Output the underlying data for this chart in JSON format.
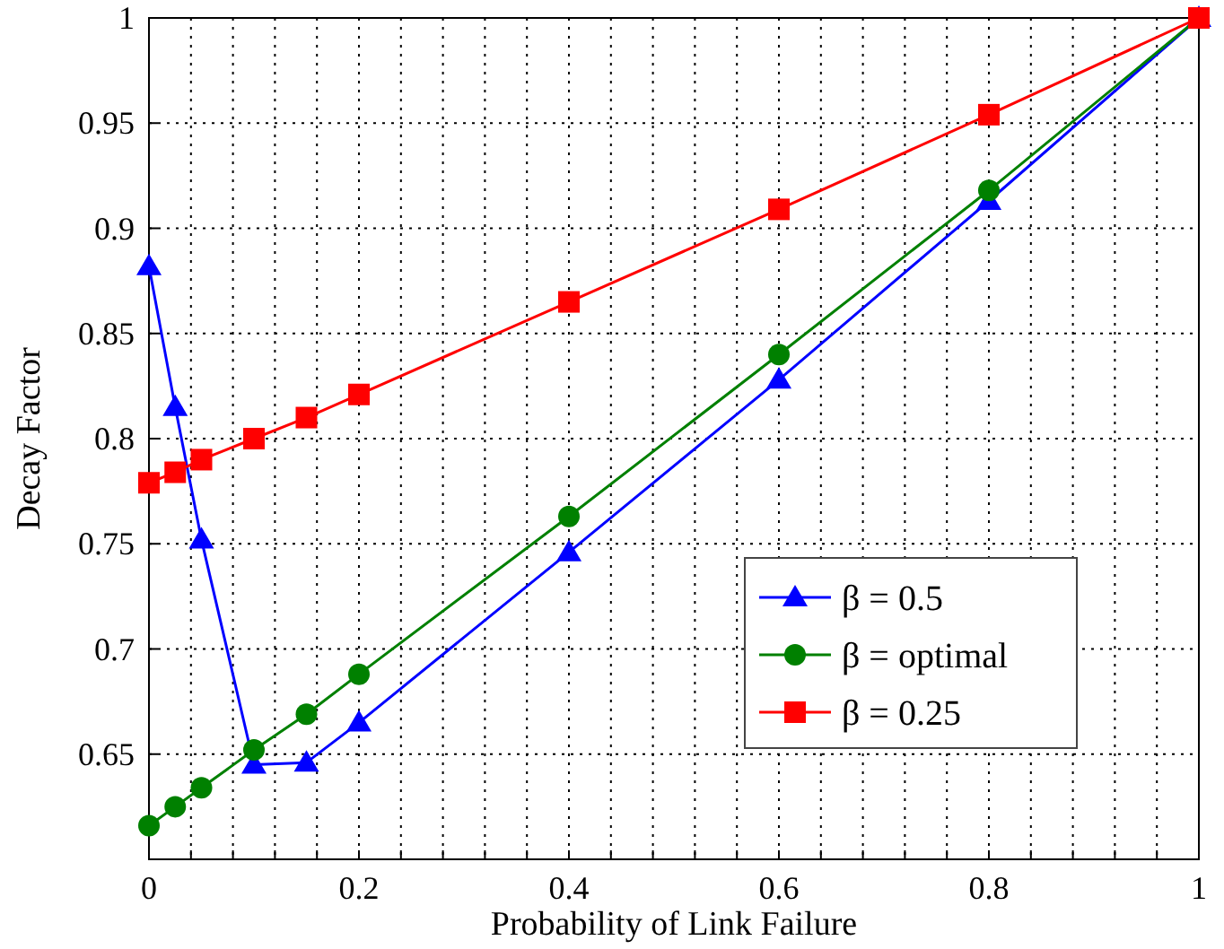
{
  "chart_data": {
    "type": "line",
    "xlabel": "Probability of Link Failure",
    "ylabel": "Decay Factor",
    "x": [
      0,
      0.025,
      0.05,
      0.1,
      0.15,
      0.2,
      0.4,
      0.6,
      0.8,
      1
    ],
    "series": [
      {
        "name": "β = 0.5",
        "color": "#0000ff",
        "marker": "triangle",
        "values": [
          0.882,
          0.815,
          0.752,
          0.645,
          0.646,
          0.665,
          0.746,
          0.828,
          0.913,
          1
        ]
      },
      {
        "name": "β = optimal",
        "color": "#008000",
        "marker": "circle",
        "values": [
          0.616,
          0.625,
          0.634,
          0.652,
          0.669,
          0.688,
          0.763,
          0.84,
          0.918,
          1
        ]
      },
      {
        "name": "β = 0.25",
        "color": "#ff0000",
        "marker": "square",
        "values": [
          0.779,
          0.784,
          0.79,
          0.8,
          0.81,
          0.821,
          0.865,
          0.909,
          0.954,
          1
        ]
      }
    ],
    "xlim": [
      0,
      1
    ],
    "xticks": [
      0,
      {
        "value": 0.04,
        "label": null
      },
      {
        "value": 0.08,
        "label": null
      },
      {
        "value": 0.12,
        "label": null
      },
      {
        "value": 0.16,
        "label": null
      },
      0.2,
      {
        "value": 0.24,
        "label": null
      },
      {
        "value": 0.28,
        "label": null
      },
      {
        "value": 0.32,
        "label": null
      },
      {
        "value": 0.36,
        "label": null
      },
      0.4,
      {
        "value": 0.44,
        "label": null
      },
      {
        "value": 0.48,
        "label": null
      },
      {
        "value": 0.52,
        "label": null
      },
      {
        "value": 0.56,
        "label": null
      },
      0.6,
      {
        "value": 0.64,
        "label": null
      },
      {
        "value": 0.68,
        "label": null
      },
      {
        "value": 0.72,
        "label": null
      },
      {
        "value": 0.76,
        "label": null
      },
      0.8,
      {
        "value": 0.84,
        "label": null
      },
      {
        "value": 0.88,
        "label": null
      },
      {
        "value": 0.92,
        "label": null
      },
      {
        "value": 0.96,
        "label": null
      },
      1
    ],
    "ylim": [
      0.6,
      1
    ],
    "yticks": [
      0.65,
      0.7,
      0.75,
      0.8,
      0.85,
      0.9,
      0.95,
      1
    ],
    "grid": true,
    "legend": "bottom right",
    "line_style": "solid"
  }
}
